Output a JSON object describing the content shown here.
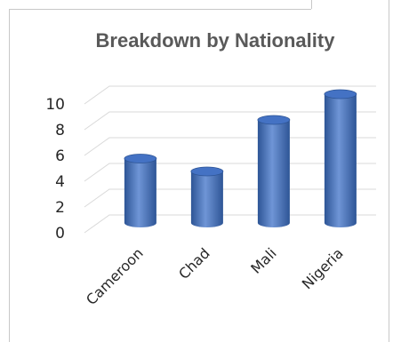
{
  "chart_data": {
    "type": "bar",
    "style": "3d-cylinder",
    "title": "Breakdown by Nationality",
    "categories": [
      "Cameroon",
      "Chad",
      "Mali",
      "Nigeria"
    ],
    "values": [
      5,
      4,
      8,
      10
    ],
    "ylim": [
      0,
      10
    ],
    "yticks": [
      0,
      2,
      4,
      6,
      8,
      10
    ],
    "xlabel": "",
    "ylabel": "",
    "grid": true,
    "legend": "none",
    "colors": {
      "bar": "#4472c4",
      "bar_dark": "#2e5596",
      "bar_light": "#6f95d6",
      "grid": "#d9d9d9",
      "title": "#595959",
      "text": "#262626"
    }
  }
}
